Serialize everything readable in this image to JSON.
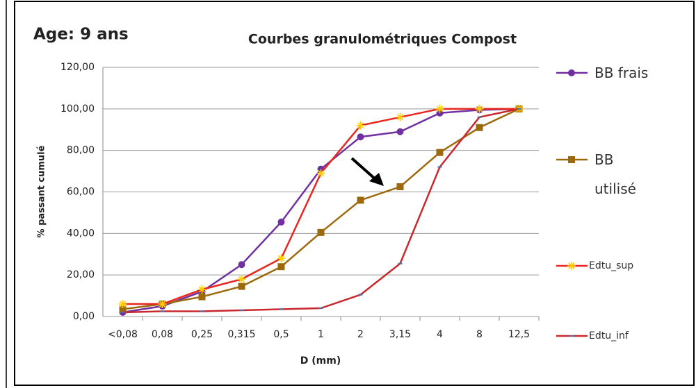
{
  "chart_data": {
    "type": "line",
    "title": "Courbes granulométriques  Compost",
    "annotation": "Age:  9 ans",
    "x_label": "D (mm)",
    "y_label": "% passant cumulé",
    "categories": [
      "<0,08",
      "0,08",
      "0,25",
      "0,315",
      "0,5",
      "1",
      "2",
      "3,15",
      "4",
      "8",
      "12,5"
    ],
    "series": [
      {
        "name": "BB frais",
        "color": "#7030a0",
        "marker": "circle",
        "values": [
          2,
          5,
          12,
          25,
          45.5,
          71,
          86.5,
          89,
          98,
          99.5,
          100
        ]
      },
      {
        "name": "BB utilisé",
        "color": "#9c6a0c",
        "marker": "square",
        "values": [
          3.5,
          6,
          9.5,
          14.5,
          24,
          40.5,
          56,
          62.5,
          79,
          91,
          100
        ]
      },
      {
        "name": "Edtu_sup",
        "color": "#e8251f",
        "marker": "star",
        "marker_color": "#ffcc00",
        "values": [
          6,
          6,
          13,
          18,
          28,
          69,
          92,
          96,
          100,
          100,
          100
        ]
      },
      {
        "name": "Edtu_inf",
        "color": "#c8282d",
        "marker": "dash",
        "marker_color": "#4a6fa5",
        "values": [
          2,
          2.5,
          2.5,
          3,
          3.5,
          4,
          10.5,
          25.5,
          72,
          96,
          100
        ]
      }
    ],
    "ylim": [
      0,
      120
    ],
    "yticks": [
      {
        "value": 0,
        "label": "0,00"
      },
      {
        "value": 20,
        "label": "20,00"
      },
      {
        "value": 40,
        "label": "40,00"
      },
      {
        "value": 60,
        "label": "60,00"
      },
      {
        "value": 80,
        "label": "80,00"
      },
      {
        "value": 100,
        "label": "100,00"
      },
      {
        "value": 120,
        "label": "120,00"
      }
    ],
    "grid": true,
    "legend": "right"
  }
}
